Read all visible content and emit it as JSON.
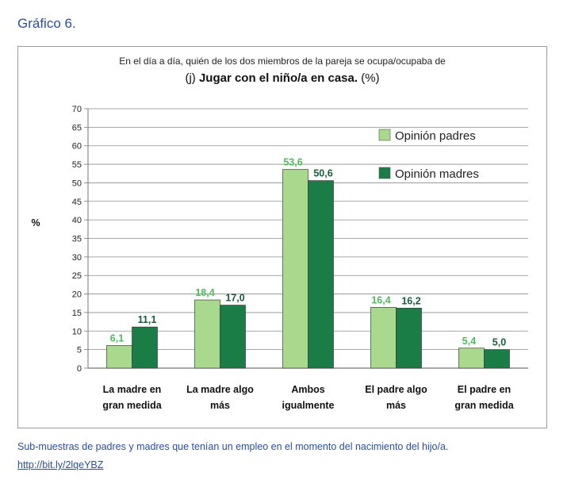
{
  "figure_title": "Gráfico 6.",
  "caption": "Sub-muestras de padres y madres que tenían un empleo en el momento del nacimiento del hijo/a.",
  "link_text": "http://bit.ly/2lqeYBZ",
  "colors": {
    "padres": "#a9d98c",
    "madres": "#1b7d46",
    "label_padres": "#4fb95c",
    "label_madres": "#155d3b",
    "title_blue": "#2a4f96"
  },
  "chart_data": {
    "type": "bar",
    "subtitle": "En el día a día, quién de los dos miembros de la pareja se ocupa/ocupaba de",
    "title_prefix": "(j) ",
    "title_bold": "Jugar con el niño/a en casa.",
    "title_suffix": " (%)",
    "ylabel": "%",
    "ylim": [
      0,
      70
    ],
    "yticks": [
      0,
      5,
      10,
      15,
      20,
      25,
      30,
      35,
      40,
      45,
      50,
      55,
      60,
      65,
      70
    ],
    "grid": true,
    "legend_position": "top-right",
    "categories": [
      [
        "La madre en",
        "gran medida"
      ],
      [
        "La madre algo",
        "más"
      ],
      [
        "Ambos",
        "igualmente"
      ],
      [
        "El padre algo",
        "más"
      ],
      [
        "El padre en",
        "gran medida"
      ]
    ],
    "series": [
      {
        "name": "Opinión padres",
        "values": [
          6.1,
          18.4,
          53.6,
          16.4,
          5.4
        ],
        "labels": [
          "6,1",
          "18,4",
          "53,6",
          "16,4",
          "5,4"
        ]
      },
      {
        "name": "Opinión madres",
        "values": [
          11.1,
          17.0,
          50.6,
          16.2,
          5.0
        ],
        "labels": [
          "11,1",
          "17,0",
          "50,6",
          "16,2",
          "5,0"
        ]
      }
    ]
  }
}
